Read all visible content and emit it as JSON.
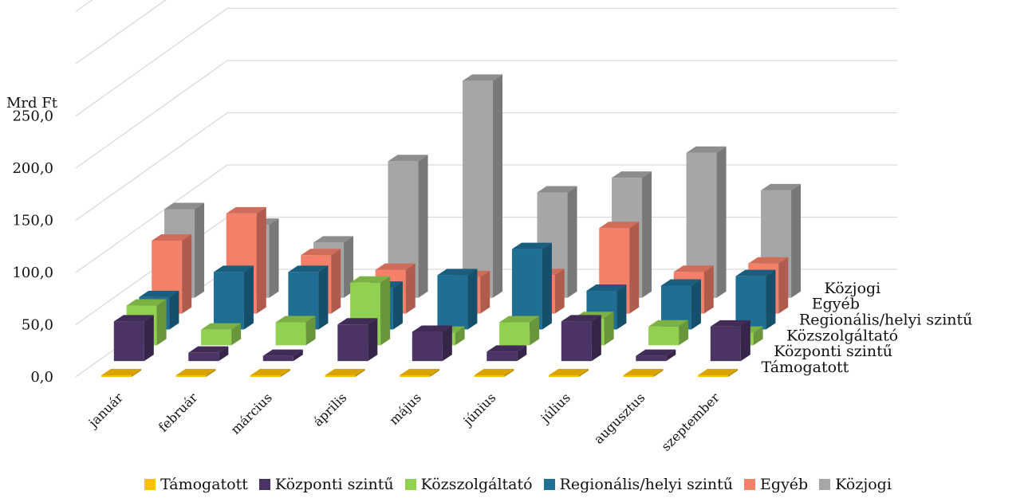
{
  "chart_data": {
    "type": "bar",
    "title": "",
    "y_unit_label": "Mrd Ft",
    "ylim": [
      0,
      250
    ],
    "ytick_labels": [
      "0,0",
      "50,0",
      "100,0",
      "150,0",
      "200,0",
      "250,0"
    ],
    "yticks": [
      0,
      50,
      100,
      150,
      200,
      250
    ],
    "grid": true,
    "legend_position": "bottom",
    "categories": [
      "január",
      "február",
      "március",
      "április",
      "május",
      "június",
      "július",
      "augusztus",
      "szeptember"
    ],
    "series": [
      {
        "name": "Támogatott",
        "color": "#ffc000",
        "values": [
          1.0,
          1.0,
          1.0,
          1.5,
          1.0,
          1.0,
          1.0,
          1.0,
          1.0
        ]
      },
      {
        "name": "Központi szintű",
        "color": "#4b3465",
        "values": [
          38,
          8,
          5,
          35,
          28,
          9,
          38,
          5,
          33
        ]
      },
      {
        "name": "Közszolgáltató",
        "color": "#92d050",
        "values": [
          38,
          15,
          22,
          60,
          12,
          22,
          26,
          18,
          12
        ]
      },
      {
        "name": "Regionális/helyi szintű",
        "color": "#1f6e94",
        "values": [
          31,
          55,
          55,
          40,
          52,
          77,
          37,
          42,
          51
        ]
      },
      {
        "name": "Egyéb",
        "color": "#f4806a",
        "values": [
          70,
          96,
          56,
          42,
          35,
          37,
          82,
          40,
          48
        ]
      },
      {
        "name": "Közjogi",
        "color": "#a6a6a6",
        "values": [
          85,
          70,
          53,
          131,
          208,
          101,
          115,
          139,
          103
        ]
      }
    ]
  }
}
